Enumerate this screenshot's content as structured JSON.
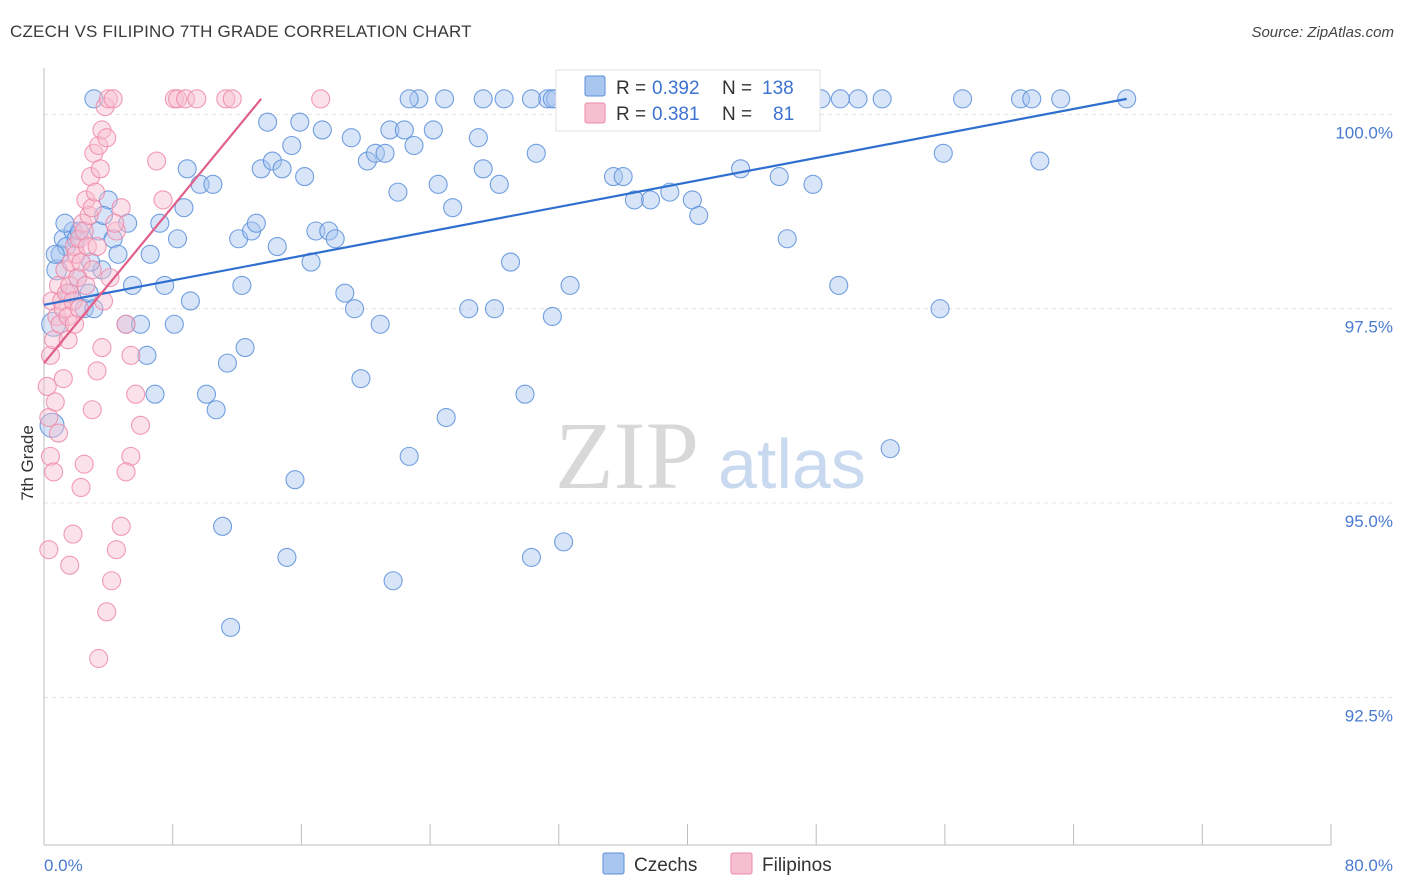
{
  "title": "CZECH VS FILIPINO 7TH GRADE CORRELATION CHART",
  "source": "Source: ZipAtlas.com",
  "colors": {
    "czech": "#5b8fd9",
    "czech_fill": "#a9c6ef",
    "czech_line": "#2f6fcf",
    "filipino": "#ee8aa8",
    "filipino_fill": "#f6bfd0",
    "filipino_line": "#e0608a",
    "tick": "#4a7bd0"
  },
  "watermark": {
    "zip": "ZIP",
    "atlas": "atlas"
  },
  "legend_box": {
    "rows": [
      {
        "r_label": "R =",
        "r_value": "0.392",
        "n_label": "N =",
        "n_value": "138"
      },
      {
        "r_label": "R =",
        "r_value": "0.381",
        "n_label": "N =",
        "n_value": "81"
      }
    ]
  },
  "bottom_legend": {
    "czech": "Czechs",
    "filipino": "Filipinos"
  },
  "chart_data": {
    "type": "scatter",
    "title": "CZECH VS FILIPINO 7TH GRADE CORRELATION CHART",
    "xlabel": "",
    "ylabel": "7th Grade",
    "xlim": [
      0,
      80
    ],
    "ylim": [
      90.6,
      100.7
    ],
    "x_tick_labels": [
      "0.0%",
      "80.0%"
    ],
    "y_ticks": [
      100.0,
      97.5,
      95.0,
      92.5
    ],
    "y_tick_labels": [
      "100.0%",
      "97.5%",
      "95.0%",
      "92.5%"
    ],
    "series": [
      {
        "name": "Czechs",
        "R": 0.392,
        "N": 138,
        "trend": {
          "x": [
            0,
            67.3
          ],
          "y": [
            97.55,
            100.2
          ]
        },
        "points": [
          [
            0.5,
            96.0,
            12
          ],
          [
            0.6,
            97.3,
            12
          ],
          [
            0.8,
            98.0,
            10
          ],
          [
            1.0,
            98.2,
            9
          ],
          [
            1.2,
            98.4,
            9
          ],
          [
            1.4,
            98.3,
            9
          ],
          [
            1.6,
            97.7,
            9
          ],
          [
            1.8,
            98.5,
            9
          ],
          [
            2.0,
            98.4,
            9
          ],
          [
            2.2,
            98.5,
            9
          ],
          [
            2.5,
            97.5,
            9
          ],
          [
            2.8,
            97.7,
            9
          ],
          [
            3.1,
            97.5,
            9
          ],
          [
            3.4,
            98.5,
            9
          ],
          [
            3.6,
            98.0,
            9
          ],
          [
            4.0,
            98.9,
            9
          ],
          [
            4.3,
            98.4,
            9
          ],
          [
            5.1,
            97.3,
            9
          ],
          [
            5.5,
            97.8,
            9
          ],
          [
            6.0,
            97.3,
            9
          ],
          [
            6.4,
            96.9,
            9
          ],
          [
            6.9,
            96.4,
            9
          ],
          [
            7.5,
            97.8,
            9
          ],
          [
            8.1,
            97.3,
            9
          ],
          [
            8.3,
            98.4,
            9
          ],
          [
            8.7,
            98.8,
            9
          ],
          [
            8.9,
            99.3,
            9
          ],
          [
            9.1,
            97.6,
            9
          ],
          [
            9.7,
            99.1,
            9
          ],
          [
            10.1,
            96.4,
            9
          ],
          [
            10.5,
            99.1,
            9
          ],
          [
            10.7,
            96.2,
            9
          ],
          [
            11.1,
            94.7,
            9
          ],
          [
            11.4,
            96.8,
            9
          ],
          [
            11.6,
            93.4,
            9
          ],
          [
            12.1,
            98.4,
            9
          ],
          [
            12.3,
            97.8,
            9
          ],
          [
            12.5,
            97.0,
            9
          ],
          [
            12.9,
            98.5,
            9
          ],
          [
            13.2,
            98.6,
            9
          ],
          [
            13.5,
            99.3,
            9
          ],
          [
            13.9,
            99.9,
            9
          ],
          [
            14.2,
            99.4,
            9
          ],
          [
            14.5,
            98.3,
            9
          ],
          [
            14.8,
            99.3,
            9
          ],
          [
            15.1,
            94.3,
            9
          ],
          [
            15.4,
            99.6,
            9
          ],
          [
            15.6,
            95.3,
            9
          ],
          [
            15.9,
            99.9,
            9
          ],
          [
            16.2,
            99.2,
            9
          ],
          [
            16.6,
            98.1,
            9
          ],
          [
            16.9,
            98.5,
            9
          ],
          [
            17.3,
            99.8,
            9
          ],
          [
            17.7,
            98.5,
            9
          ],
          [
            18.1,
            98.4,
            9
          ],
          [
            18.7,
            97.7,
            9
          ],
          [
            19.1,
            99.7,
            9
          ],
          [
            19.3,
            97.5,
            9
          ],
          [
            19.7,
            96.6,
            9
          ],
          [
            20.1,
            99.4,
            9
          ],
          [
            20.6,
            99.5,
            9
          ],
          [
            20.9,
            97.3,
            9
          ],
          [
            21.2,
            99.5,
            9
          ],
          [
            21.5,
            99.8,
            9
          ],
          [
            21.7,
            94.0,
            9
          ],
          [
            22.0,
            99.0,
            9
          ],
          [
            22.4,
            99.8,
            9
          ],
          [
            22.7,
            95.6,
            9
          ],
          [
            23.0,
            99.6,
            9
          ],
          [
            23.3,
            100.2,
            9
          ],
          [
            24.2,
            99.8,
            9
          ],
          [
            24.5,
            99.1,
            9
          ],
          [
            25.0,
            96.1,
            9
          ],
          [
            25.4,
            98.8,
            9
          ],
          [
            26.4,
            97.5,
            9
          ],
          [
            27.0,
            99.7,
            9
          ],
          [
            27.3,
            99.3,
            9
          ],
          [
            28.0,
            97.5,
            9
          ],
          [
            28.3,
            99.1,
            9
          ],
          [
            28.6,
            100.2,
            9
          ],
          [
            29.0,
            98.1,
            9
          ],
          [
            29.9,
            96.4,
            9
          ],
          [
            30.3,
            94.3,
            9
          ],
          [
            30.6,
            99.5,
            9
          ],
          [
            31.3,
            100.2,
            9
          ],
          [
            31.6,
            97.4,
            9
          ],
          [
            31.8,
            100.2,
            9
          ],
          [
            32.3,
            94.5,
            9
          ],
          [
            32.7,
            97.8,
            9
          ],
          [
            35.4,
            99.2,
            9
          ],
          [
            36.0,
            99.2,
            9
          ],
          [
            36.7,
            98.9,
            9
          ],
          [
            37.7,
            98.9,
            9
          ],
          [
            38.9,
            99.0,
            9
          ],
          [
            39.2,
            100.2,
            9
          ],
          [
            40.3,
            98.9,
            9
          ],
          [
            40.7,
            98.7,
            9
          ],
          [
            41.5,
            100.2,
            9
          ],
          [
            43.3,
            99.3,
            9
          ],
          [
            44.1,
            100.2,
            9
          ],
          [
            45.7,
            99.2,
            9
          ],
          [
            46.2,
            98.4,
            9
          ],
          [
            47.8,
            99.1,
            9
          ],
          [
            49.4,
            97.8,
            9
          ],
          [
            52.1,
            100.2,
            9
          ],
          [
            52.6,
            95.7,
            9
          ],
          [
            55.7,
            97.5,
            9
          ],
          [
            55.9,
            99.5,
            9
          ],
          [
            57.1,
            100.2,
            9
          ],
          [
            60.7,
            100.2,
            9
          ],
          [
            61.4,
            100.2,
            9
          ],
          [
            61.9,
            99.4,
            9
          ],
          [
            63.2,
            100.2,
            9
          ],
          [
            67.3,
            100.2,
            9
          ],
          [
            3.1,
            100.2,
            9
          ],
          [
            22.7,
            100.2,
            9
          ],
          [
            24.9,
            100.2,
            9
          ],
          [
            27.3,
            100.2,
            9
          ],
          [
            30.3,
            100.2,
            9
          ],
          [
            31.6,
            100.2,
            9
          ],
          [
            33.2,
            100.2,
            9
          ],
          [
            34.4,
            100.2,
            9
          ],
          [
            35.6,
            100.2,
            9
          ],
          [
            36.9,
            100.2,
            9
          ],
          [
            38.1,
            100.2,
            9
          ],
          [
            39.4,
            100.2,
            9
          ],
          [
            40.6,
            100.2,
            9
          ],
          [
            42.7,
            100.2,
            9
          ],
          [
            43.9,
            100.2,
            9
          ],
          [
            45.0,
            100.2,
            9
          ],
          [
            46.1,
            100.2,
            9
          ],
          [
            47.2,
            100.2,
            9
          ],
          [
            48.3,
            100.2,
            9
          ],
          [
            49.5,
            100.2,
            9
          ],
          [
            50.6,
            100.2,
            9
          ],
          [
            0.7,
            98.2,
            9
          ],
          [
            1.3,
            98.6,
            9
          ],
          [
            2.1,
            97.9,
            9
          ],
          [
            2.9,
            98.1,
            9
          ],
          [
            3.7,
            98.7,
            9
          ],
          [
            4.6,
            98.2,
            9
          ],
          [
            5.2,
            98.6,
            9
          ],
          [
            6.6,
            98.2,
            9
          ],
          [
            7.2,
            98.6,
            9
          ]
        ]
      },
      {
        "name": "Filipinos",
        "R": 0.381,
        "N": 81,
        "trend": {
          "x": [
            0,
            13.5
          ],
          "y": [
            96.8,
            100.2
          ]
        },
        "points": [
          [
            0.2,
            96.5,
            9
          ],
          [
            0.3,
            96.1,
            9
          ],
          [
            0.4,
            95.6,
            9
          ],
          [
            0.4,
            96.9,
            9
          ],
          [
            0.5,
            97.6,
            9
          ],
          [
            0.6,
            97.1,
            9
          ],
          [
            0.7,
            96.3,
            9
          ],
          [
            0.8,
            97.4,
            9
          ],
          [
            0.9,
            97.8,
            9
          ],
          [
            1.0,
            97.3,
            9
          ],
          [
            1.1,
            97.6,
            9
          ],
          [
            1.2,
            97.5,
            9
          ],
          [
            1.3,
            98.0,
            9
          ],
          [
            1.4,
            97.7,
            9
          ],
          [
            1.5,
            97.4,
            9
          ],
          [
            1.6,
            97.8,
            9
          ],
          [
            1.7,
            98.1,
            9
          ],
          [
            1.8,
            97.6,
            9
          ],
          [
            1.9,
            98.3,
            9
          ],
          [
            2.0,
            98.2,
            9
          ],
          [
            2.1,
            97.9,
            9
          ],
          [
            2.2,
            98.4,
            9
          ],
          [
            2.3,
            98.1,
            9
          ],
          [
            2.4,
            98.6,
            9
          ],
          [
            2.5,
            98.5,
            9
          ],
          [
            2.6,
            98.9,
            9
          ],
          [
            2.7,
            98.3,
            9
          ],
          [
            2.8,
            98.7,
            9
          ],
          [
            2.9,
            99.2,
            9
          ],
          [
            3.0,
            98.8,
            9
          ],
          [
            3.1,
            99.5,
            9
          ],
          [
            3.2,
            99.0,
            9
          ],
          [
            3.4,
            99.6,
            9
          ],
          [
            3.5,
            99.3,
            9
          ],
          [
            3.6,
            99.8,
            9
          ],
          [
            3.8,
            100.1,
            9
          ],
          [
            3.9,
            99.7,
            9
          ],
          [
            4.0,
            100.2,
            9
          ],
          [
            4.3,
            100.2,
            9
          ],
          [
            4.5,
            98.5,
            9
          ],
          [
            4.8,
            98.8,
            9
          ],
          [
            5.1,
            97.3,
            9
          ],
          [
            5.4,
            96.9,
            9
          ],
          [
            5.7,
            96.4,
            9
          ],
          [
            6.0,
            96.0,
            9
          ],
          [
            5.4,
            95.6,
            9
          ],
          [
            5.1,
            95.4,
            9
          ],
          [
            4.8,
            94.7,
            9
          ],
          [
            4.5,
            94.4,
            9
          ],
          [
            4.2,
            94.0,
            9
          ],
          [
            3.9,
            93.6,
            9
          ],
          [
            3.4,
            93.0,
            9
          ],
          [
            1.6,
            94.2,
            9
          ],
          [
            1.8,
            94.6,
            9
          ],
          [
            2.3,
            95.2,
            9
          ],
          [
            2.5,
            95.5,
            9
          ],
          [
            3.0,
            96.2,
            9
          ],
          [
            3.3,
            96.7,
            9
          ],
          [
            3.6,
            97.0,
            9
          ],
          [
            7.0,
            99.4,
            9
          ],
          [
            7.4,
            98.9,
            9
          ],
          [
            8.1,
            100.2,
            9
          ],
          [
            8.3,
            100.2,
            9
          ],
          [
            8.8,
            100.2,
            9
          ],
          [
            9.5,
            100.2,
            9
          ],
          [
            11.3,
            100.2,
            9
          ],
          [
            11.7,
            100.2,
            9
          ],
          [
            17.2,
            100.2,
            9
          ],
          [
            0.3,
            94.4,
            9
          ],
          [
            0.6,
            95.4,
            9
          ],
          [
            0.9,
            95.9,
            9
          ],
          [
            1.2,
            96.6,
            9
          ],
          [
            1.5,
            97.1,
            9
          ],
          [
            1.9,
            97.3,
            9
          ],
          [
            2.2,
            97.5,
            9
          ],
          [
            2.6,
            97.8,
            9
          ],
          [
            3.0,
            98.0,
            9
          ],
          [
            3.3,
            98.3,
            9
          ],
          [
            3.7,
            97.6,
            9
          ],
          [
            4.1,
            97.9,
            9
          ],
          [
            4.4,
            98.6,
            9
          ]
        ]
      }
    ],
    "legend": [
      "Czechs",
      "Filipinos"
    ],
    "grid": true
  }
}
